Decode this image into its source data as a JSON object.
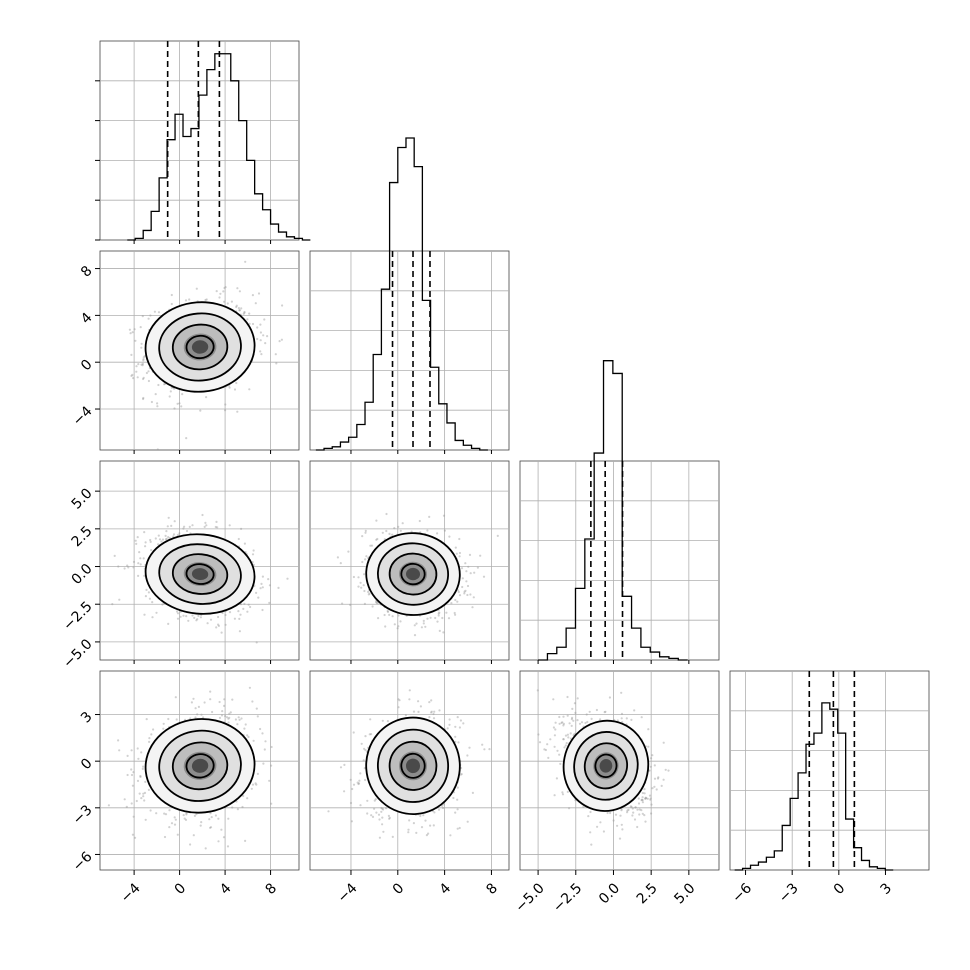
{
  "chart_data": {
    "type": "corner",
    "parameters": [
      {
        "ticks": [
          -4,
          0,
          4,
          8
        ],
        "tick_labels": [
          "−4",
          "0",
          "4",
          "8"
        ],
        "range": [
          -7,
          10.5
        ],
        "hist": {
          "edges_start": -4.6,
          "bin_width": 0.7,
          "counts": [
            0,
            1,
            6,
            18,
            39,
            63,
            79,
            65,
            70,
            91,
            107,
            117,
            117,
            100,
            75,
            50,
            29,
            19,
            10,
            5,
            2,
            1,
            0
          ]
        },
        "quantiles": [
          -1.05,
          1.65,
          3.5
        ],
        "samples": {
          "mean": 1.8,
          "sd": 2.4
        }
      },
      {
        "ticks": [
          -4,
          0,
          4,
          8
        ],
        "tick_labels": [
          "−4",
          "0",
          "4",
          "8"
        ],
        "range": [
          -7.5,
          9.5
        ],
        "hist": {
          "edges_start": -7.0,
          "bin_width": 0.7,
          "counts": [
            0,
            1,
            2,
            5,
            8,
            16,
            30,
            60,
            101,
            168,
            190,
            196,
            178,
            94,
            52,
            29,
            17,
            6,
            3,
            1,
            0
          ]
        },
        "quantiles": [
          -0.45,
          1.3,
          2.75
        ],
        "samples": {
          "mean": 1.3,
          "sd": 2.0
        }
      },
      {
        "ticks": [
          -5.0,
          -2.5,
          0.0,
          2.5,
          5.0
        ],
        "tick_labels": [
          "−5.0",
          "−2.5",
          "0.0",
          "2.5",
          "5.0"
        ],
        "range": [
          -6.2,
          7.0
        ],
        "hist": {
          "edges_start": -5.0,
          "bin_width": 0.62,
          "counts": [
            0,
            4,
            8,
            20,
            45,
            76,
            130,
            188,
            180,
            40,
            20,
            8,
            5,
            2,
            1,
            0
          ]
        },
        "quantiles": [
          -1.5,
          -0.55,
          0.6
        ],
        "samples": {
          "mean": -0.5,
          "sd": 1.4
        }
      },
      {
        "ticks": [
          -6,
          -3,
          0,
          3
        ],
        "tick_labels": [
          "−6",
          "−3",
          "0",
          "3"
        ],
        "range": [
          -7.0,
          5.8
        ],
        "hist": {
          "edges_start": -6.7,
          "bin_width": 0.51,
          "counts": [
            0,
            1,
            3,
            5,
            8,
            12,
            28,
            45,
            61,
            79,
            86,
            105,
            101,
            86,
            32,
            14,
            6,
            2,
            1,
            0
          ]
        },
        "quantiles": [
          -1.9,
          -0.35,
          1.0
        ],
        "samples": {
          "mean": -0.3,
          "sd": 1.6
        }
      }
    ],
    "hist_ylim": [
      0,
      125
    ],
    "correlations": [
      [
        0,
        1,
        0.15
      ],
      [
        0,
        2,
        -0.2
      ],
      [
        1,
        2,
        -0.1
      ],
      [
        0,
        3,
        0.2
      ],
      [
        1,
        3,
        0.1
      ],
      [
        2,
        3,
        -0.3
      ]
    ],
    "contour_levels_sigma": [
      0.5,
      1.0,
      1.5,
      2.0
    ],
    "grid": true,
    "colors": {
      "hist": "#000000",
      "scatter": "#9a9a9a",
      "contour": "#000000",
      "grid": "#b0b0b0",
      "density": "#4a4a4a"
    }
  }
}
